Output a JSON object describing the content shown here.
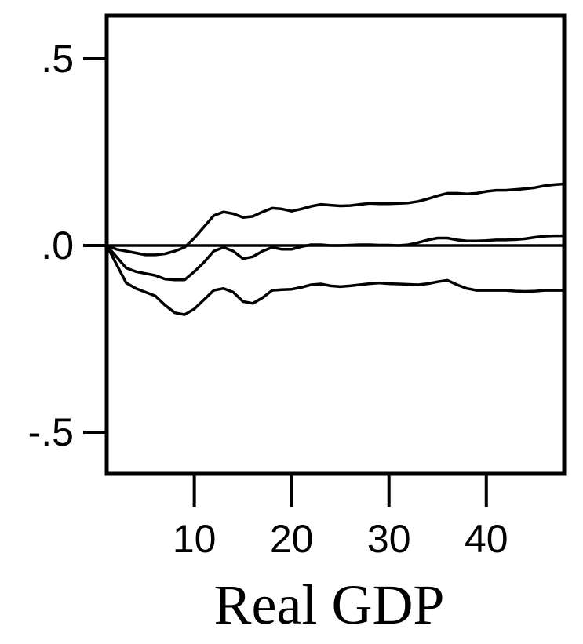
{
  "chart_data": {
    "type": "line",
    "title": "",
    "xlabel": "Real GDP",
    "ylabel": "",
    "xlim": [
      1,
      48
    ],
    "ylim": [
      -0.61,
      0.61
    ],
    "x_ticks": [
      10,
      20,
      30,
      40
    ],
    "x_tick_labels": [
      "10",
      "20",
      "30",
      "40"
    ],
    "y_ticks": [
      0.5,
      0.0,
      -0.5
    ],
    "y_tick_labels": [
      ".5",
      ".0",
      "-.5"
    ],
    "zero_line": 0,
    "grid": false,
    "legend": "none",
    "series": [
      {
        "role": "upper-band",
        "x": [
          1,
          2,
          3,
          4,
          5,
          6,
          7,
          8,
          9,
          10,
          11,
          12,
          13,
          14,
          15,
          16,
          17,
          18,
          19,
          20,
          21,
          22,
          23,
          24,
          25,
          26,
          27,
          28,
          29,
          30,
          31,
          32,
          33,
          34,
          35,
          36,
          37,
          38,
          39,
          40,
          41,
          42,
          43,
          44,
          45,
          46,
          47,
          48
        ],
        "values": [
          0.0,
          -0.01,
          -0.015,
          -0.02,
          -0.025,
          -0.025,
          -0.022,
          -0.015,
          -0.005,
          0.02,
          0.05,
          0.08,
          0.09,
          0.085,
          0.075,
          0.078,
          0.09,
          0.1,
          0.098,
          0.092,
          0.098,
          0.105,
          0.11,
          0.108,
          0.106,
          0.107,
          0.11,
          0.113,
          0.112,
          0.112,
          0.113,
          0.114,
          0.118,
          0.125,
          0.133,
          0.14,
          0.14,
          0.138,
          0.14,
          0.145,
          0.148,
          0.148,
          0.15,
          0.152,
          0.155,
          0.16,
          0.163,
          0.165
        ]
      },
      {
        "role": "point-estimate",
        "x": [
          1,
          2,
          3,
          4,
          5,
          6,
          7,
          8,
          9,
          10,
          11,
          12,
          13,
          14,
          15,
          16,
          17,
          18,
          19,
          20,
          21,
          22,
          23,
          24,
          25,
          26,
          27,
          28,
          29,
          30,
          31,
          32,
          33,
          34,
          35,
          36,
          37,
          38,
          39,
          40,
          41,
          42,
          43,
          44,
          45,
          46,
          47,
          48
        ],
        "values": [
          0.0,
          -0.03,
          -0.06,
          -0.07,
          -0.075,
          -0.08,
          -0.09,
          -0.092,
          -0.092,
          -0.07,
          -0.045,
          -0.015,
          -0.005,
          -0.015,
          -0.035,
          -0.03,
          -0.015,
          -0.005,
          -0.01,
          -0.01,
          -0.003,
          0.002,
          0.002,
          0.0,
          0.0,
          0.001,
          0.002,
          0.002,
          0.001,
          0.001,
          0.0,
          0.002,
          0.008,
          0.015,
          0.02,
          0.02,
          0.015,
          0.012,
          0.012,
          0.013,
          0.015,
          0.015,
          0.016,
          0.018,
          0.022,
          0.025,
          0.026,
          0.026
        ]
      },
      {
        "role": "lower-band",
        "x": [
          1,
          2,
          3,
          4,
          5,
          6,
          7,
          8,
          9,
          10,
          11,
          12,
          13,
          14,
          15,
          16,
          17,
          18,
          19,
          20,
          21,
          22,
          23,
          24,
          25,
          26,
          27,
          28,
          29,
          30,
          31,
          32,
          33,
          34,
          35,
          36,
          37,
          38,
          39,
          40,
          41,
          42,
          43,
          44,
          45,
          46,
          47,
          48
        ],
        "values": [
          0.0,
          -0.05,
          -0.1,
          -0.115,
          -0.125,
          -0.135,
          -0.16,
          -0.18,
          -0.185,
          -0.17,
          -0.145,
          -0.12,
          -0.115,
          -0.125,
          -0.15,
          -0.155,
          -0.14,
          -0.12,
          -0.118,
          -0.117,
          -0.112,
          -0.105,
          -0.103,
          -0.108,
          -0.11,
          -0.108,
          -0.105,
          -0.102,
          -0.1,
          -0.102,
          -0.103,
          -0.104,
          -0.105,
          -0.102,
          -0.097,
          -0.093,
          -0.105,
          -0.115,
          -0.12,
          -0.12,
          -0.12,
          -0.12,
          -0.122,
          -0.123,
          -0.122,
          -0.12,
          -0.12,
          -0.12
        ]
      }
    ]
  }
}
